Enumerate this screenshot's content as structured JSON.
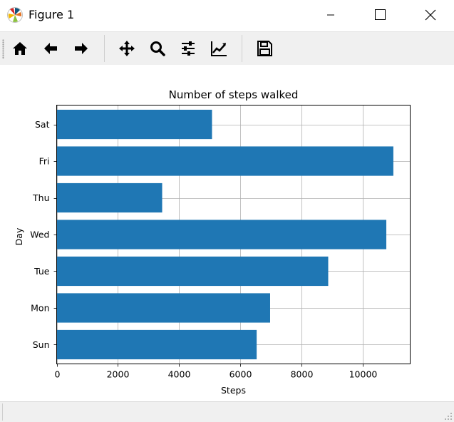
{
  "window": {
    "title": "Figure 1"
  },
  "toolbar": {
    "buttons": [
      {
        "name": "home-button",
        "icon": "home-icon"
      },
      {
        "name": "back-button",
        "icon": "arrow-left-icon"
      },
      {
        "name": "forward-button",
        "icon": "arrow-right-icon"
      },
      {
        "name": "pan-button",
        "icon": "move-icon"
      },
      {
        "name": "zoom-button",
        "icon": "magnifier-icon"
      },
      {
        "name": "configure-subplots-button",
        "icon": "sliders-icon"
      },
      {
        "name": "edit-axis-button",
        "icon": "line-chart-icon"
      },
      {
        "name": "save-button",
        "icon": "floppy-disk-icon"
      }
    ]
  },
  "chart_data": {
    "type": "bar",
    "orientation": "horizontal",
    "title": "Number of steps walked",
    "xlabel": "Steps",
    "ylabel": "Day",
    "categories": [
      "Sun",
      "Mon",
      "Tue",
      "Wed",
      "Thu",
      "Fri",
      "Sat"
    ],
    "values": [
      6540,
      6980,
      8880,
      10780,
      3450,
      11010,
      5080
    ],
    "xlim": [
      0,
      11560
    ],
    "xticks": [
      0,
      2000,
      4000,
      6000,
      8000,
      10000
    ],
    "grid": true,
    "bar_color": "#1f77b4"
  }
}
